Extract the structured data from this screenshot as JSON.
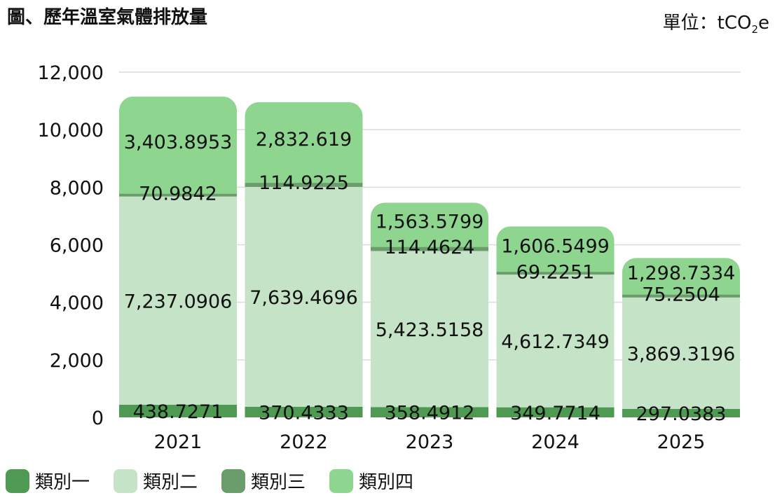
{
  "title": "圖、歷年溫室氣體排放量",
  "unit": {
    "prefix": "單位：tCO",
    "sub": "2",
    "suffix": "e"
  },
  "colors": {
    "cat1": "#4f9a53",
    "cat2": "#c5e3c6",
    "cat3": "#6b9c6c",
    "cat4": "#8ed58f",
    "grid": "#dcdcdc"
  },
  "chart_data": {
    "type": "bar",
    "stacked": true,
    "categories": [
      "2021",
      "2022",
      "2023",
      "2024",
      "2025"
    ],
    "ylim": [
      0,
      12000
    ],
    "yticks": [
      0,
      2000,
      4000,
      6000,
      8000,
      10000,
      12000
    ],
    "ytick_labels": [
      "0",
      "2,000",
      "4,000",
      "6,000",
      "8,000",
      "10,000",
      "12,000"
    ],
    "grid": true,
    "legend_position": "bottom-left",
    "series": [
      {
        "name": "類別一",
        "values": [
          438.7271,
          370.4333,
          358.4912,
          349.7714,
          297.0383
        ],
        "labels": [
          "438.7271",
          "370.4333",
          "358.4912",
          "349.7714",
          "297.0383"
        ]
      },
      {
        "name": "類別二",
        "values": [
          7237.0906,
          7639.4696,
          5423.5158,
          4612.7349,
          3869.3196
        ],
        "labels": [
          "7,237.0906",
          "7,639.4696",
          "5,423.5158",
          "4,612.7349",
          "3,869.3196"
        ]
      },
      {
        "name": "類別三",
        "values": [
          70.9842,
          114.9225,
          114.4624,
          69.2251,
          75.2504
        ],
        "labels": [
          "70.9842",
          "114.9225",
          "114.4624",
          "69.2251",
          "75.2504"
        ]
      },
      {
        "name": "類別四",
        "values": [
          3403.8953,
          2832.619,
          1563.5799,
          1606.5499,
          1298.7334
        ],
        "labels": [
          "3,403.8953",
          "2,832.619",
          "1,563.5799",
          "1,606.5499",
          "1,298.7334"
        ]
      }
    ]
  }
}
